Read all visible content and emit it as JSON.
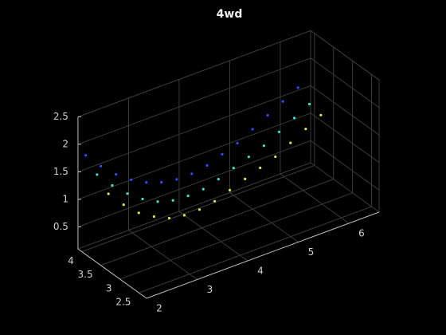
{
  "chart_data": {
    "type": "scatter3",
    "title": "4wd",
    "xlim": [
      2,
      6.6
    ],
    "ylim": [
      2.3,
      4.1
    ],
    "zlim": [
      0.1,
      2.5
    ],
    "xticks": [
      2,
      3,
      4,
      5,
      6
    ],
    "yticks": [
      2.5,
      3,
      3.5,
      4
    ],
    "zticks": [
      0.5,
      1,
      1.5,
      2,
      2.5
    ],
    "grid": true,
    "series": [
      {
        "color": "#2f4cff",
        "x": [
          2.0,
          2.3,
          2.6,
          2.9,
          3.2,
          3.5,
          3.8,
          4.1,
          4.4,
          4.7,
          5.0,
          5.3,
          5.6,
          5.9,
          6.2
        ],
        "y": [
          3.9,
          3.9,
          3.9,
          3.9,
          3.9,
          3.9,
          3.9,
          3.9,
          3.9,
          3.9,
          3.9,
          3.9,
          3.9,
          3.9,
          3.9
        ],
        "z": [
          1.9,
          1.6,
          1.35,
          1.15,
          1.0,
          0.9,
          0.85,
          0.85,
          0.9,
          1.0,
          1.1,
          1.25,
          1.4,
          1.55,
          1.7
        ]
      },
      {
        "color": "#3fe0d0",
        "x": [
          2.0,
          2.3,
          2.6,
          2.9,
          3.2,
          3.5,
          3.8,
          4.1,
          4.4,
          4.7,
          5.0,
          5.3,
          5.6,
          5.9,
          6.2
        ],
        "y": [
          3.6,
          3.6,
          3.6,
          3.6,
          3.6,
          3.6,
          3.6,
          3.6,
          3.6,
          3.6,
          3.6,
          3.6,
          3.6,
          3.6,
          3.6
        ],
        "z": [
          1.7,
          1.4,
          1.15,
          0.95,
          0.8,
          0.72,
          0.7,
          0.72,
          0.8,
          0.9,
          1.0,
          1.1,
          1.25,
          1.4,
          1.55
        ]
      },
      {
        "color": "#c8f050",
        "x": [
          2.0,
          2.3,
          2.6,
          2.9,
          3.2,
          3.5,
          3.8,
          4.1,
          4.4,
          4.7,
          5.0,
          5.3,
          5.6,
          5.9,
          6.2
        ],
        "y": [
          3.3,
          3.3,
          3.3,
          3.3,
          3.3,
          3.3,
          3.3,
          3.3,
          3.3,
          3.3,
          3.3,
          3.3,
          3.3,
          3.3,
          3.3
        ],
        "z": [
          1.5,
          1.2,
          0.95,
          0.78,
          0.65,
          0.6,
          0.6,
          0.65,
          0.75,
          0.85,
          0.95,
          1.05,
          1.2,
          1.35,
          1.5
        ]
      }
    ]
  }
}
